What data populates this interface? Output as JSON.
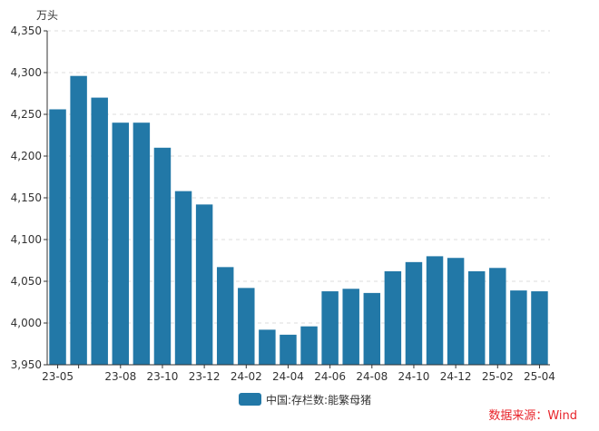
{
  "chart_data": {
    "type": "bar",
    "unit": "万头",
    "categories": [
      "23-05",
      "23-06",
      "23-07",
      "23-08",
      "23-09",
      "23-10",
      "23-11",
      "23-12",
      "24-01",
      "24-02",
      "24-03",
      "24-04",
      "24-05",
      "24-06",
      "24-07",
      "24-08",
      "24-09",
      "24-10",
      "24-11",
      "24-12",
      "25-01",
      "25-02",
      "25-03",
      "25-04"
    ],
    "x_tick_labels": [
      "23-05",
      "23-08",
      "23-10",
      "23-12",
      "24-02",
      "24-04",
      "24-06",
      "24-08",
      "24-10",
      "24-12",
      "25-02",
      "25-04"
    ],
    "y_tick_labels": [
      "3,950",
      "4,000",
      "4,050",
      "4,100",
      "4,150",
      "4,200",
      "4,250",
      "4,300",
      "4,350"
    ],
    "series": [
      {
        "name": "中国:存栏数:能繁母猪",
        "values": [
          4256,
          4296,
          4270,
          4240,
          4240,
          4210,
          4158,
          4142,
          4067,
          4042,
          3992,
          3986,
          3996,
          4038,
          4041,
          4036,
          4062,
          4073,
          4080,
          4078,
          4062,
          4066,
          4039,
          4038
        ]
      }
    ],
    "ylim": [
      3950,
      4350
    ],
    "grid": true,
    "legend_position": "bottom",
    "bar_color": "#2278a7"
  },
  "source_note": "数据来源：Wind"
}
